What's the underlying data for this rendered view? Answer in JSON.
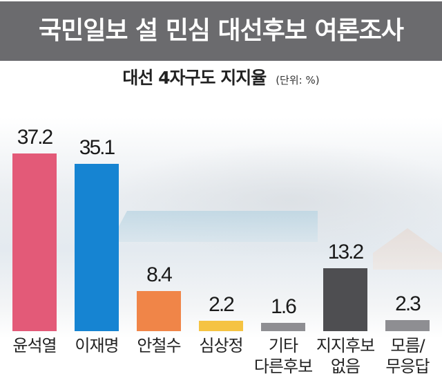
{
  "header": {
    "title": "국민일보 설 민심 대선후보 여론조사",
    "bg_color": "#6b6b6e"
  },
  "subtitle": {
    "main": "대선 4자구도 지지율",
    "unit": "(단위: %)"
  },
  "bars": [
    {
      "label_line1": "윤석열",
      "label_line2": "",
      "value": "37.2",
      "color": "#e35a78"
    },
    {
      "label_line1": "이재명",
      "label_line2": "",
      "value": "35.1",
      "color": "#1684d2"
    },
    {
      "label_line1": "안철수",
      "label_line2": "",
      "value": "8.4",
      "color": "#f08548"
    },
    {
      "label_line1": "심상정",
      "label_line2": "",
      "value": "2.2",
      "color": "#f5c342"
    },
    {
      "label_line1": "기타",
      "label_line2": "다른후보",
      "value": "1.6",
      "color": "#8e8e92"
    },
    {
      "label_line1": "지지후보",
      "label_line2": "없음",
      "value": "13.2",
      "color": "#4e4e51"
    },
    {
      "label_line1": "모름/",
      "label_line2": "무응답",
      "value": "2.3",
      "color": "#8e8e92"
    }
  ],
  "chart_data": {
    "type": "bar",
    "title": "국민일보 설 민심 대선후보 여론조사",
    "subtitle": "대선 4자구도 지지율 (단위: %)",
    "categories": [
      "윤석열",
      "이재명",
      "안철수",
      "심상정",
      "기타 다른후보",
      "지지후보 없음",
      "모름/무응답"
    ],
    "values": [
      37.2,
      35.1,
      8.4,
      2.2,
      1.6,
      13.2,
      2.3
    ],
    "colors": [
      "#e35a78",
      "#1684d2",
      "#f08548",
      "#f5c342",
      "#8e8e92",
      "#4e4e51",
      "#8e8e92"
    ],
    "xlabel": "",
    "ylabel": "",
    "unit": "%",
    "grid": false,
    "legend": "none",
    "data_labels": true
  }
}
